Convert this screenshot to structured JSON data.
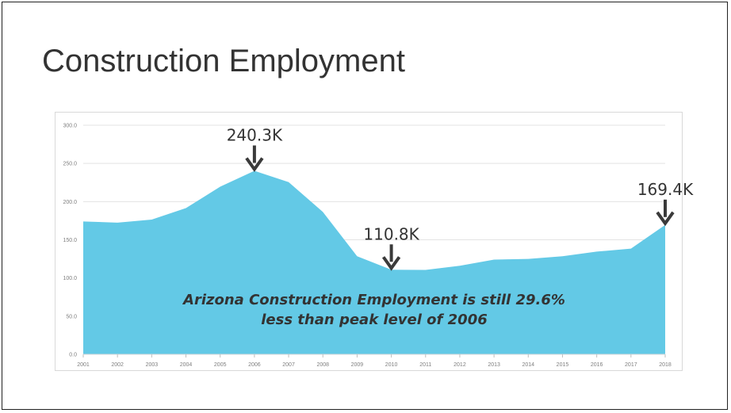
{
  "slide": {
    "title": "Construction Employment"
  },
  "chart_data": {
    "type": "area",
    "title": "",
    "xlabel": "",
    "ylabel": "",
    "x": [
      "2001",
      "2002",
      "2003",
      "2004",
      "2005",
      "2006",
      "2007",
      "2008",
      "2009",
      "2010",
      "2011",
      "2012",
      "2013",
      "2014",
      "2015",
      "2016",
      "2017",
      "2018"
    ],
    "series": [
      {
        "values": [
          174.0,
          172.5,
          176.5,
          191.5,
          219.5,
          240.3,
          225.5,
          186.5,
          128.5,
          110.8,
          110.5,
          116.0,
          124.0,
          125.0,
          128.5,
          134.5,
          138.5,
          169.4
        ]
      }
    ],
    "ylim": [
      0,
      300
    ],
    "yticks": [
      0,
      50,
      100,
      150,
      200,
      250,
      300
    ],
    "ytick_labels": [
      "0.0",
      "50.0",
      "100.0",
      "150.0",
      "200.0",
      "250.0",
      "300.0"
    ],
    "grid": true,
    "fill_color": "#63c9e6",
    "arrow_color": "#3a3a3a",
    "callouts": [
      {
        "x": "2006",
        "label": "240.3K"
      },
      {
        "x": "2010",
        "label": "110.8K"
      },
      {
        "x": "2018",
        "label": "169.4K"
      }
    ],
    "annotation": [
      "Arizona Construction Employment is still 29.6%",
      "less than peak level of 2006"
    ]
  }
}
